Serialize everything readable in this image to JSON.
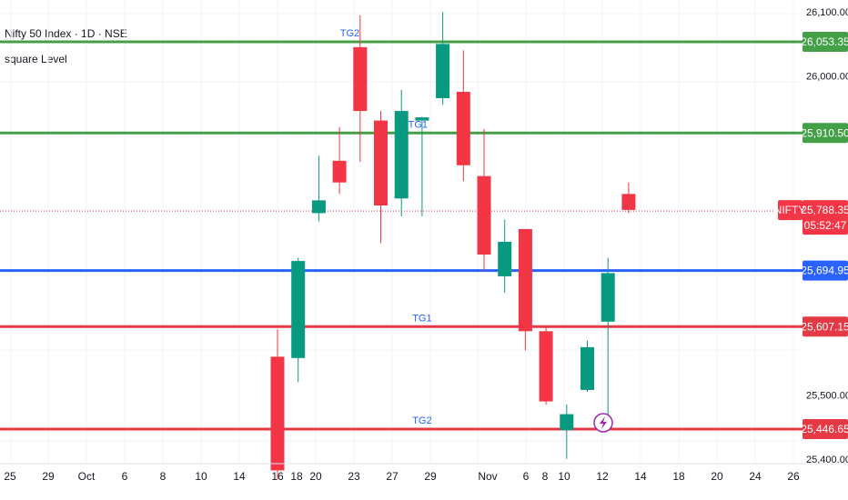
{
  "header": {
    "title": "Nifty 50 Index · 1D · NSE",
    "indicator": "square Level"
  },
  "colors": {
    "up": "#089981",
    "down": "#f23645",
    "green_level": "#43a047",
    "red_level": "#e53946",
    "blue_level": "#2962ff",
    "grid": "#f0f3fa",
    "last_price": "#f23645"
  },
  "chart_data": {
    "type": "candlestick",
    "symbol": "NIFTY",
    "ylim": [
      25380,
      26110
    ],
    "y_ticks": [
      "26,100.00",
      "26,000.00",
      "25,500.00",
      "25,400.00"
    ],
    "x_ticks": [
      "25",
      "29",
      "Oct",
      "6",
      "8",
      "10",
      "14",
      "16",
      "18",
      "20",
      "23",
      "27",
      "29",
      "Nov",
      "6",
      "8",
      "10",
      "12",
      "14",
      "18",
      "20",
      "24",
      "26"
    ],
    "candles": [
      {
        "o": 25560,
        "h": 25603,
        "l": 25368,
        "c": 25382
      },
      {
        "o": 25558,
        "h": 25715,
        "l": 25520,
        "c": 25710
      },
      {
        "o": 25785,
        "h": 25875,
        "l": 25772,
        "c": 25805
      },
      {
        "o": 25867,
        "h": 25920,
        "l": 25815,
        "c": 25833
      },
      {
        "o": 26045,
        "h": 26095,
        "l": 25865,
        "c": 25945
      },
      {
        "o": 25930,
        "h": 25945,
        "l": 25738,
        "c": 25797
      },
      {
        "o": 25808,
        "h": 25978,
        "l": 25780,
        "c": 25945
      },
      {
        "o": 25930,
        "h": 25936,
        "l": 25780,
        "c": 25935
      },
      {
        "o": 25965,
        "h": 26100,
        "l": 25955,
        "c": 26050
      },
      {
        "o": 25975,
        "h": 26040,
        "l": 25835,
        "c": 25860
      },
      {
        "o": 25843,
        "h": 25917,
        "l": 25693,
        "c": 25720
      },
      {
        "o": 25686,
        "h": 25775,
        "l": 25660,
        "c": 25740
      },
      {
        "o": 25760,
        "h": 25760,
        "l": 25570,
        "c": 25600
      },
      {
        "o": 25600,
        "h": 25606,
        "l": 25485,
        "c": 25490
      },
      {
        "o": 25445,
        "h": 25485,
        "l": 25400,
        "c": 25470
      },
      {
        "o": 25508,
        "h": 25585,
        "l": 25505,
        "c": 25575
      },
      {
        "o": 25615,
        "h": 25715,
        "l": 25450,
        "c": 25691
      },
      {
        "o": 25815,
        "h": 25833,
        "l": 25785,
        "c": 25790
      }
    ],
    "levels": [
      {
        "price": 26053.35,
        "label": "26,053.35",
        "color": "#43a047",
        "tag": "TG2",
        "tag_candle": 3.5
      },
      {
        "price": 25910.5,
        "label": "25,910.50",
        "color": "#43a047",
        "tag": "TG1",
        "tag_candle": 6.8
      },
      {
        "price": 25694.95,
        "label": "25,694.95",
        "color": "#2962ff",
        "tag": "",
        "tag_candle": 0
      },
      {
        "price": 25607.15,
        "label": "25,607.15",
        "color": "#e53946",
        "tag": "TG1",
        "tag_candle": 7.0
      },
      {
        "price": 25446.65,
        "label": "25,446.65",
        "color": "#e53946",
        "tag": "TG2",
        "tag_candle": 7.0
      }
    ],
    "last_price": {
      "price": 25788.35,
      "label": "25,788.35",
      "countdown": "05:52:47",
      "symbol": "NIFTY"
    }
  }
}
